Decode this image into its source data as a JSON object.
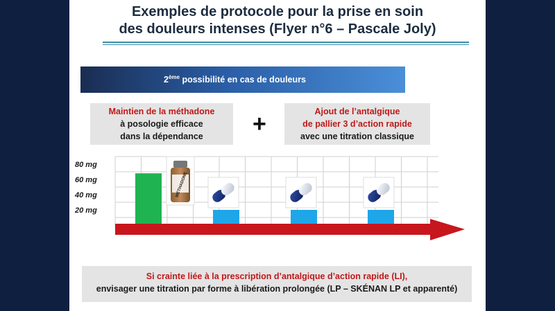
{
  "title": {
    "line1": "Exemples de protocole pour la prise en soin",
    "line2": "des douleurs intenses (Flyer n°6 – Pascale Joly)"
  },
  "banner": {
    "ordinal": "2",
    "ordinal_suffix": "ème",
    "text": " possibilité en cas de douleurs"
  },
  "left_box": {
    "line1": "Maintien de la méthadone",
    "line2": "à posologie efficace",
    "line3": "dans la dépendance"
  },
  "plus": "+",
  "right_box": {
    "line1": "Ajout de l’antalgique",
    "line2": "de pallier 3 d’action rapide",
    "line3": "avec une titration classique"
  },
  "bottle_label": "MÉTHADONE",
  "bottom_box": {
    "line1": "Si crainte liée à la prescription d’antalgique d’action rapide (LI),",
    "line2": "envisager une titration par forme à libération prolongée (LP – SKÉNAN LP et apparenté)"
  },
  "colors": {
    "methadone_bar": "#1fb451",
    "rapid_bar": "#1ea6e8",
    "arrow": "#c8161d",
    "accent_text": "#c01818"
  },
  "icons": [
    "methadone-bottle-icon",
    "capsule-icon"
  ],
  "chart_data": {
    "type": "bar",
    "ytick_labels": [
      "80 mg",
      "60 mg",
      "40 mg",
      "20 mg"
    ],
    "yticks": [
      80,
      60,
      40,
      20
    ],
    "ylim": [
      0,
      90
    ],
    "series": [
      {
        "kind": "methadone",
        "values": [
          68
        ]
      },
      {
        "kind": "rapid",
        "values": [
          20,
          20,
          20
        ]
      }
    ],
    "grid": true
  }
}
